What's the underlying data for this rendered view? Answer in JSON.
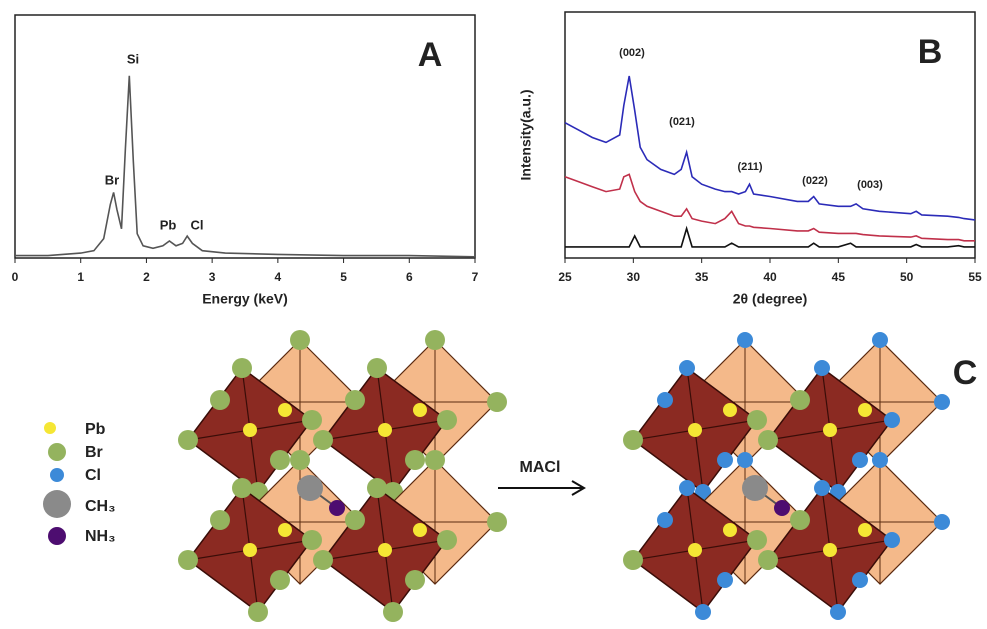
{
  "chart_data": [
    {
      "type": "line",
      "panel_label": "A",
      "xlabel": "Energy (keV)",
      "annotations": [
        "Br",
        "Si",
        "Pb",
        "Cl"
      ],
      "x": [
        0,
        0.5,
        1.0,
        1.2,
        1.35,
        1.45,
        1.5,
        1.55,
        1.62,
        1.68,
        1.74,
        1.8,
        1.86,
        1.95,
        2.1,
        2.25,
        2.35,
        2.45,
        2.55,
        2.62,
        2.7,
        2.85,
        3.2,
        4,
        5,
        6,
        7
      ],
      "values": [
        1,
        1,
        2,
        3,
        8,
        22,
        27,
        20,
        12,
        45,
        75,
        40,
        10,
        5,
        4,
        5,
        7,
        5,
        6,
        9,
        6,
        3,
        2,
        1.5,
        1,
        1,
        0.5
      ],
      "color": "#555555",
      "xlim": [
        0,
        7
      ],
      "ylim": [
        0,
        100
      ],
      "xticks": [
        0,
        1,
        2,
        3,
        4,
        5,
        6,
        7
      ]
    },
    {
      "type": "line",
      "panel_label": "B",
      "xlabel": "2θ (degree)",
      "ylabel": "Intensity(a.u.)",
      "annotations": [
        "(002)",
        "(021)",
        "(211)",
        "(022)",
        "(003)"
      ],
      "x": [
        25,
        26,
        27,
        28,
        29,
        29.3,
        29.7,
        30.1,
        30.5,
        31,
        32,
        33,
        33.5,
        33.9,
        34.3,
        35,
        36,
        36.7,
        37.2,
        37.7,
        38.2,
        38.5,
        38.8,
        40,
        42,
        42.8,
        43.2,
        43.6,
        45,
        45.9,
        46.3,
        46.8,
        48,
        50.3,
        50.7,
        51.1,
        53,
        53.8,
        54.2,
        55
      ],
      "series": [
        {
          "color": "#2b2bb8",
          "values": [
            55,
            52,
            49,
            47,
            50,
            62,
            74,
            60,
            45,
            40,
            36,
            34,
            36,
            43,
            33,
            30,
            28,
            27,
            27,
            26,
            27,
            30,
            26,
            25,
            23,
            23,
            25,
            22,
            21,
            21,
            22,
            20,
            19,
            18,
            19,
            17.5,
            17,
            16.5,
            16,
            15.5
          ]
        },
        {
          "color": "#c0304a",
          "values": [
            33,
            31,
            29,
            27,
            28,
            33,
            34,
            27,
            23,
            21,
            19,
            17,
            17,
            20,
            16,
            15,
            14,
            16,
            19,
            14,
            13,
            13,
            12.5,
            12,
            11,
            11,
            12,
            10.5,
            10,
            10,
            10,
            9.5,
            9,
            8.5,
            9,
            8,
            7.5,
            7.5,
            7,
            7
          ]
        },
        {
          "color": "#111111",
          "values": [
            4.5,
            4.5,
            4.5,
            4.5,
            4.5,
            4.5,
            4.5,
            9,
            4.5,
            4.5,
            4.5,
            4.5,
            4.5,
            12,
            4.5,
            4.5,
            4.5,
            4.5,
            6,
            4.5,
            4.5,
            4.5,
            4.5,
            4.5,
            4.5,
            4.5,
            6,
            4.5,
            4.5,
            6,
            4.5,
            4.5,
            4.5,
            4.5,
            5.5,
            4.5,
            4.5,
            5,
            4.5,
            4.5
          ]
        }
      ],
      "xlim": [
        25,
        55
      ],
      "ylim": [
        0,
        100
      ],
      "xticks": [
        25,
        30,
        35,
        40,
        45,
        50,
        55
      ]
    }
  ],
  "diagram": {
    "panel_label": "C",
    "legend": [
      "Pb",
      "Br",
      "Cl",
      "CH₃",
      "NH₃"
    ],
    "arrow_label": "MACl"
  }
}
